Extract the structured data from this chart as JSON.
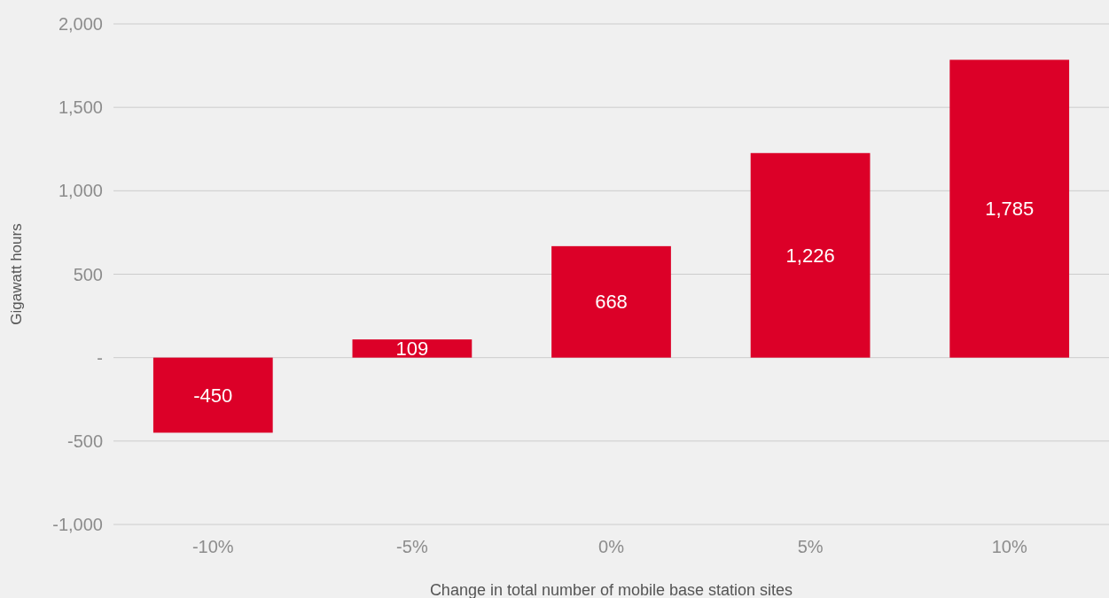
{
  "chart_data": {
    "type": "bar",
    "xlabel": "Change in total number of mobile base station sites",
    "ylabel": "Gigawatt hours",
    "categories": [
      "-10%",
      "-5%",
      "0%",
      "5%",
      "10%"
    ],
    "values": [
      -450,
      109,
      668,
      1226,
      1785
    ],
    "color": "#dc0028",
    "ylim": [
      -1000,
      2000
    ],
    "yticks": [
      {
        "value": -1000,
        "label": "-1,000"
      },
      {
        "value": -500,
        "label": "-500"
      },
      {
        "value": 0,
        "label": "-"
      },
      {
        "value": 500,
        "label": "500"
      },
      {
        "value": 1000,
        "label": "1,000"
      },
      {
        "value": 1500,
        "label": "1,500"
      },
      {
        "value": 2000,
        "label": "2,000"
      }
    ],
    "value_labels": [
      "-450",
      "109",
      "668",
      "1,226",
      "1,785"
    ],
    "grid": "y"
  }
}
